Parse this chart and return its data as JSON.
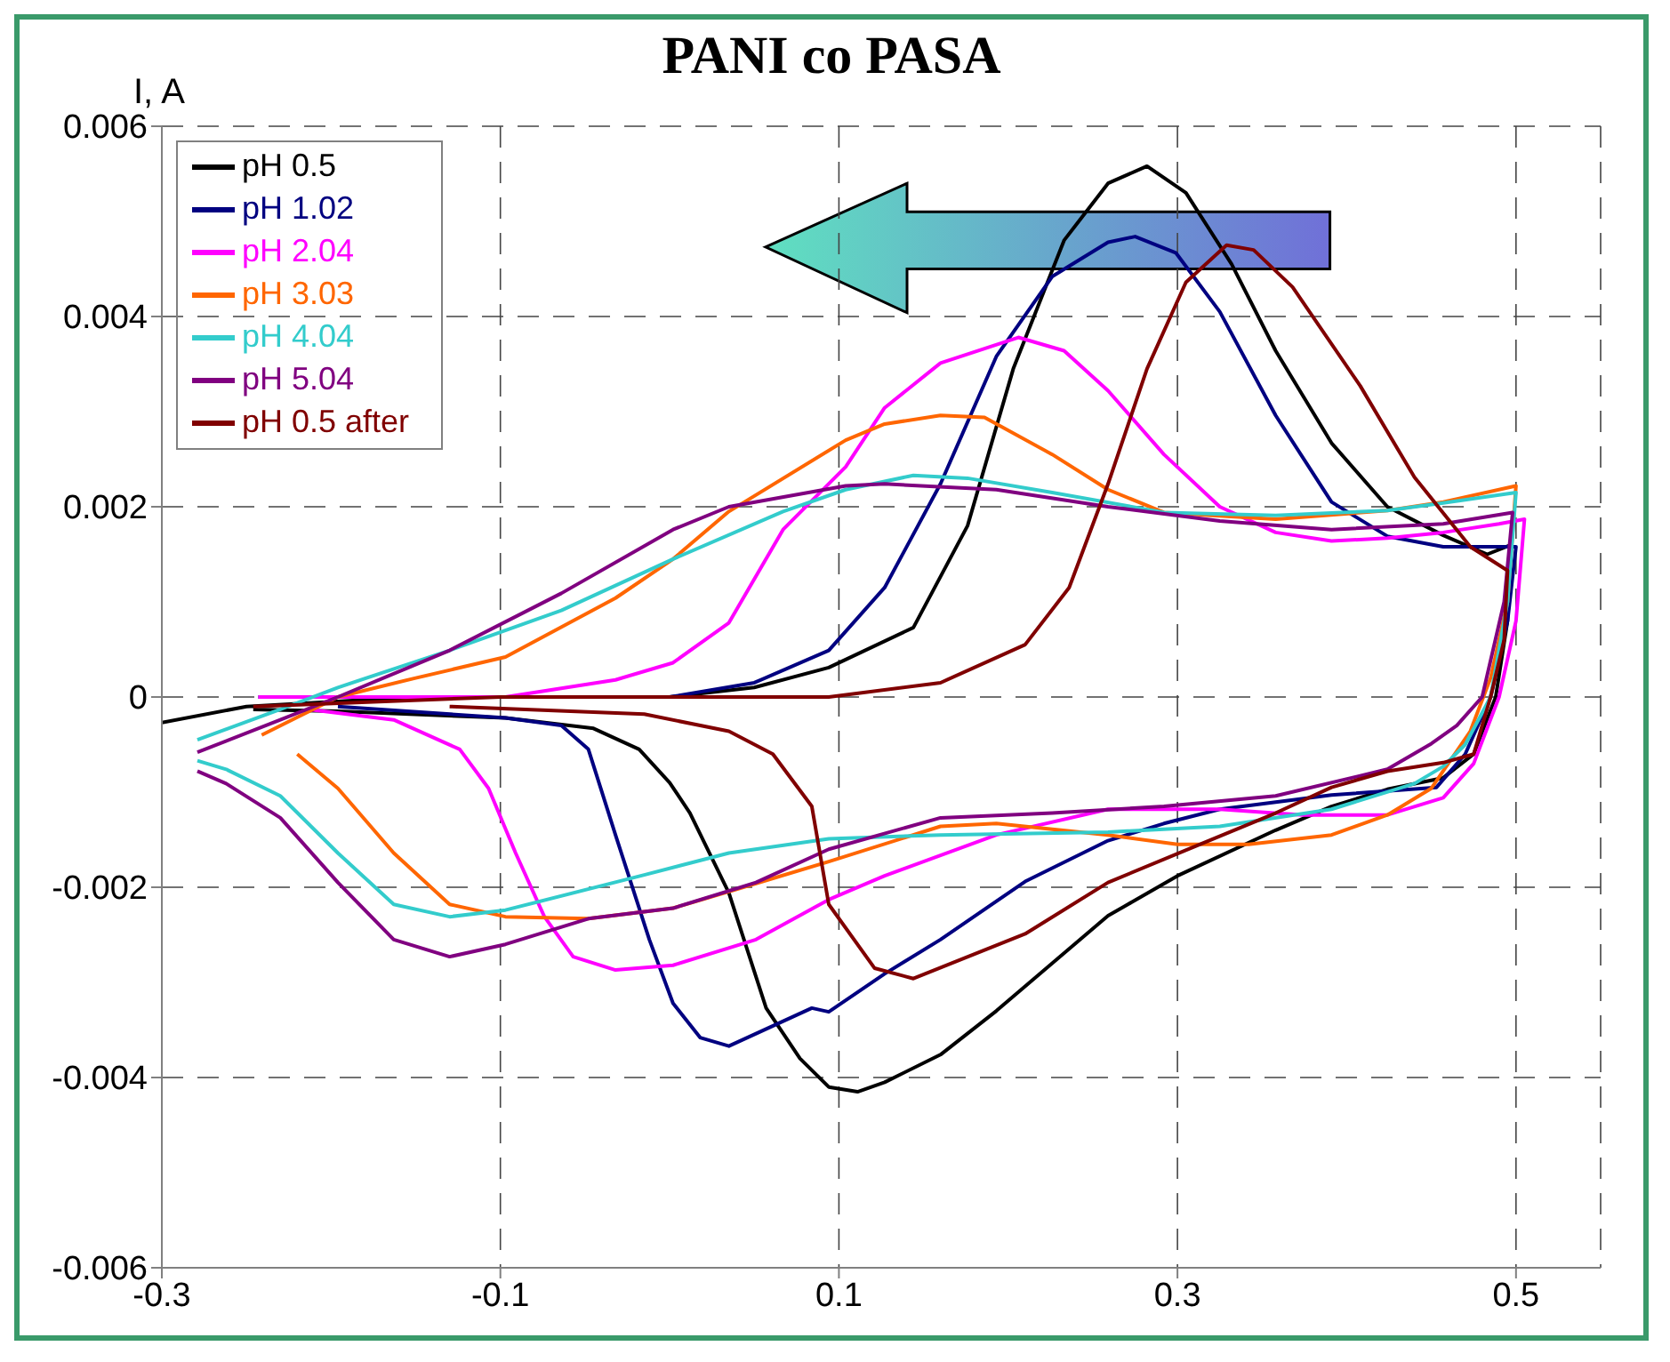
{
  "chart_data": {
    "type": "line",
    "title": "PANI co PASA",
    "ylabel": "I, A",
    "xlim": [
      -0.3,
      0.55
    ],
    "xticks": [
      -0.3,
      -0.1,
      0.1,
      0.3,
      0.5
    ],
    "ylim": [
      -0.006,
      0.006
    ],
    "yticks": [
      -0.006,
      -0.004,
      -0.002,
      0,
      0.002,
      0.004,
      0.006
    ],
    "grid": true,
    "legend": "top left",
    "line_style": "solid",
    "marker": "none",
    "series": [
      {
        "name": "pH 0.5",
        "color": "#000000",
        "x": [
          -0.3,
          -0.25,
          -0.15,
          -0.05,
          0,
          0.05,
          0.094,
          0.144,
          0.176,
          0.203,
          0.233,
          0.259,
          0.282,
          0.305,
          0.332,
          0.358,
          0.391,
          0.424,
          0.457,
          0.483,
          0.497,
          0.495,
          0.488,
          0.475,
          0.457,
          0.424,
          0.391,
          0.358,
          0.3,
          0.259,
          0.226,
          0.193,
          0.16,
          0.127,
          0.111,
          0.094,
          0.077,
          0.057,
          0.035,
          0.012,
          0,
          -0.018,
          -0.045,
          -0.097,
          -0.196,
          -0.246
        ],
        "values": [
          -0.00027,
          -0.0001,
          0,
          0,
          0,
          0.0001,
          0.00031,
          0.00073,
          0.0018,
          0.00345,
          0.0048,
          0.0054,
          0.00558,
          0.0053,
          0.00455,
          0.00364,
          0.00267,
          0.002,
          0.0017,
          0.0015,
          0.0016,
          0.0008,
          0,
          -0.0006,
          -0.00085,
          -0.00097,
          -0.00115,
          -0.0014,
          -0.00188,
          -0.0023,
          -0.0028,
          -0.0033,
          -0.00376,
          -0.00405,
          -0.00415,
          -0.0041,
          -0.0038,
          -0.00327,
          -0.00206,
          -0.00122,
          -0.0009,
          -0.00055,
          -0.00033,
          -0.00022,
          -0.00015,
          -0.00013
        ]
      },
      {
        "name": "pH 1.02",
        "color": "#000080",
        "x": [
          -0.243,
          -0.15,
          0,
          0.05,
          0.094,
          0.127,
          0.16,
          0.193,
          0.226,
          0.259,
          0.275,
          0.299,
          0.325,
          0.358,
          0.391,
          0.424,
          0.457,
          0.5,
          0.495,
          0.485,
          0.47,
          0.453,
          0.391,
          0.325,
          0.292,
          0.259,
          0.21,
          0.16,
          0.127,
          0.094,
          0.084,
          0.035,
          0.018,
          0.002,
          -0.012,
          -0.032,
          -0.048,
          -0.064,
          -0.097,
          -0.196
        ],
        "values": [
          0,
          0,
          0,
          0.00015,
          0.00049,
          0.00115,
          0.00224,
          0.00358,
          0.00442,
          0.00478,
          0.00484,
          0.00467,
          0.00405,
          0.00296,
          0.00205,
          0.00169,
          0.00158,
          0.00158,
          0.0008,
          0,
          -0.0006,
          -0.00095,
          -0.00103,
          -0.00118,
          -0.00133,
          -0.00151,
          -0.00194,
          -0.00255,
          -0.00291,
          -0.00331,
          -0.00327,
          -0.00367,
          -0.00358,
          -0.00322,
          -0.00255,
          -0.00145,
          -0.00055,
          -0.0003,
          -0.00022,
          -0.0001
        ]
      },
      {
        "name": "pH 2.04",
        "color": "#ff00ff",
        "x": [
          -0.243,
          -0.2,
          -0.097,
          -0.032,
          0.002,
          0.035,
          0.067,
          0.104,
          0.127,
          0.16,
          0.206,
          0.233,
          0.259,
          0.292,
          0.325,
          0.358,
          0.391,
          0.424,
          0.457,
          0.49,
          0.505,
          0.5,
          0.49,
          0.475,
          0.457,
          0.424,
          0.374,
          0.325,
          0.259,
          0.193,
          0.127,
          0.094,
          0.051,
          0.002,
          -0.032,
          -0.057,
          -0.074,
          -0.091,
          -0.107,
          -0.124,
          -0.163,
          -0.213
        ],
        "values": [
          0,
          0,
          0,
          0.00018,
          0.00036,
          0.00078,
          0.00176,
          0.00242,
          0.00304,
          0.00351,
          0.00378,
          0.00364,
          0.00322,
          0.00255,
          0.002,
          0.00173,
          0.00164,
          0.00167,
          0.00173,
          0.00182,
          0.00187,
          0.0008,
          0,
          -0.0007,
          -0.00106,
          -0.00124,
          -0.00124,
          -0.00118,
          -0.00118,
          -0.00145,
          -0.00188,
          -0.00213,
          -0.00255,
          -0.00282,
          -0.00287,
          -0.00273,
          -0.00231,
          -0.00164,
          -0.00096,
          -0.00055,
          -0.00024,
          -0.00013
        ]
      },
      {
        "name": "pH 3.03",
        "color": "#ff6600",
        "x": [
          -0.241,
          -0.196,
          -0.15,
          -0.097,
          -0.032,
          0.002,
          0.035,
          0.104,
          0.127,
          0.16,
          0.186,
          0.226,
          0.259,
          0.292,
          0.358,
          0.424,
          0.457,
          0.5,
          0.495,
          0.485,
          0.473,
          0.45,
          0.424,
          0.391,
          0.342,
          0.3,
          0.259,
          0.193,
          0.16,
          0.094,
          0.051,
          0.002,
          -0.048,
          -0.097,
          -0.13,
          -0.163,
          -0.196,
          -0.22
        ],
        "values": [
          -0.0004,
          0,
          0.0002,
          0.00042,
          0.00104,
          0.00145,
          0.00195,
          0.0027,
          0.00287,
          0.00296,
          0.00294,
          0.00255,
          0.00218,
          0.00194,
          0.00187,
          0.00196,
          0.00205,
          0.00222,
          0.001,
          0.0002,
          -0.00036,
          -0.00096,
          -0.00124,
          -0.00145,
          -0.00155,
          -0.00155,
          -0.00145,
          -0.00133,
          -0.00136,
          -0.00173,
          -0.00196,
          -0.00222,
          -0.00233,
          -0.00231,
          -0.00218,
          -0.00164,
          -0.00096,
          -0.0006
        ]
      },
      {
        "name": "pH 4.04",
        "color": "#33cccc",
        "x": [
          -0.279,
          -0.23,
          -0.196,
          -0.13,
          -0.064,
          0.002,
          0.067,
          0.104,
          0.144,
          0.176,
          0.226,
          0.292,
          0.358,
          0.424,
          0.457,
          0.5,
          0.495,
          0.485,
          0.47,
          0.457,
          0.44,
          0.391,
          0.325,
          0.259,
          0.16,
          0.094,
          0.035,
          -0.015,
          -0.097,
          -0.13,
          -0.163,
          -0.196,
          -0.23,
          -0.262,
          -0.279
        ],
        "values": [
          -0.00045,
          -0.00013,
          0.0001,
          0.00049,
          0.00091,
          0.00145,
          0.00195,
          0.00218,
          0.00233,
          0.0023,
          0.00215,
          0.00194,
          0.00191,
          0.00196,
          0.00204,
          0.00215,
          0.001,
          0,
          -0.0005,
          -0.00073,
          -0.00091,
          -0.00118,
          -0.00136,
          -0.00142,
          -0.00145,
          -0.00149,
          -0.00164,
          -0.00187,
          -0.00224,
          -0.00231,
          -0.00218,
          -0.00164,
          -0.00104,
          -0.00076,
          -0.00067
        ]
      },
      {
        "name": "pH 5.04",
        "color": "#800080",
        "x": [
          -0.279,
          -0.23,
          -0.196,
          -0.13,
          -0.064,
          0.002,
          0.035,
          0.104,
          0.127,
          0.193,
          0.259,
          0.325,
          0.391,
          0.457,
          0.498,
          0.493,
          0.48,
          0.465,
          0.45,
          0.424,
          0.358,
          0.292,
          0.226,
          0.16,
          0.094,
          0.051,
          0.002,
          -0.048,
          -0.097,
          -0.13,
          -0.163,
          -0.196,
          -0.23,
          -0.262,
          -0.279
        ],
        "values": [
          -0.00058,
          -0.00024,
          0,
          0.00049,
          0.00109,
          0.00176,
          0.002,
          0.00222,
          0.00224,
          0.00218,
          0.002,
          0.00185,
          0.00176,
          0.00182,
          0.00194,
          0.001,
          0,
          -0.0003,
          -0.00049,
          -0.00076,
          -0.00104,
          -0.00115,
          -0.00122,
          -0.00127,
          -0.0016,
          -0.00195,
          -0.00222,
          -0.00233,
          -0.0026,
          -0.00273,
          -0.00255,
          -0.00195,
          -0.00127,
          -0.00091,
          -0.00078
        ]
      },
      {
        "name": "pH 0.5 after",
        "color": "#800000",
        "x": [
          -0.246,
          -0.1,
          0.094,
          0.16,
          0.21,
          0.236,
          0.259,
          0.282,
          0.305,
          0.329,
          0.345,
          0.368,
          0.408,
          0.44,
          0.473,
          0.495,
          0.493,
          0.485,
          0.475,
          0.457,
          0.424,
          0.391,
          0.358,
          0.309,
          0.259,
          0.21,
          0.144,
          0.121,
          0.094,
          0.084,
          0.061,
          0.035,
          -0.015,
          -0.13
        ],
        "values": [
          -0.0001,
          0,
          0,
          0.00015,
          0.00055,
          0.00115,
          0.00224,
          0.00345,
          0.00436,
          0.00475,
          0.0047,
          0.00431,
          0.00327,
          0.00231,
          0.00158,
          0.00133,
          0.0006,
          0,
          -0.0006,
          -0.00069,
          -0.00078,
          -0.00095,
          -0.00122,
          -0.00158,
          -0.00195,
          -0.00249,
          -0.00296,
          -0.00285,
          -0.00218,
          -0.00115,
          -0.0006,
          -0.00036,
          -0.00018,
          -0.0001
        ]
      }
    ]
  }
}
